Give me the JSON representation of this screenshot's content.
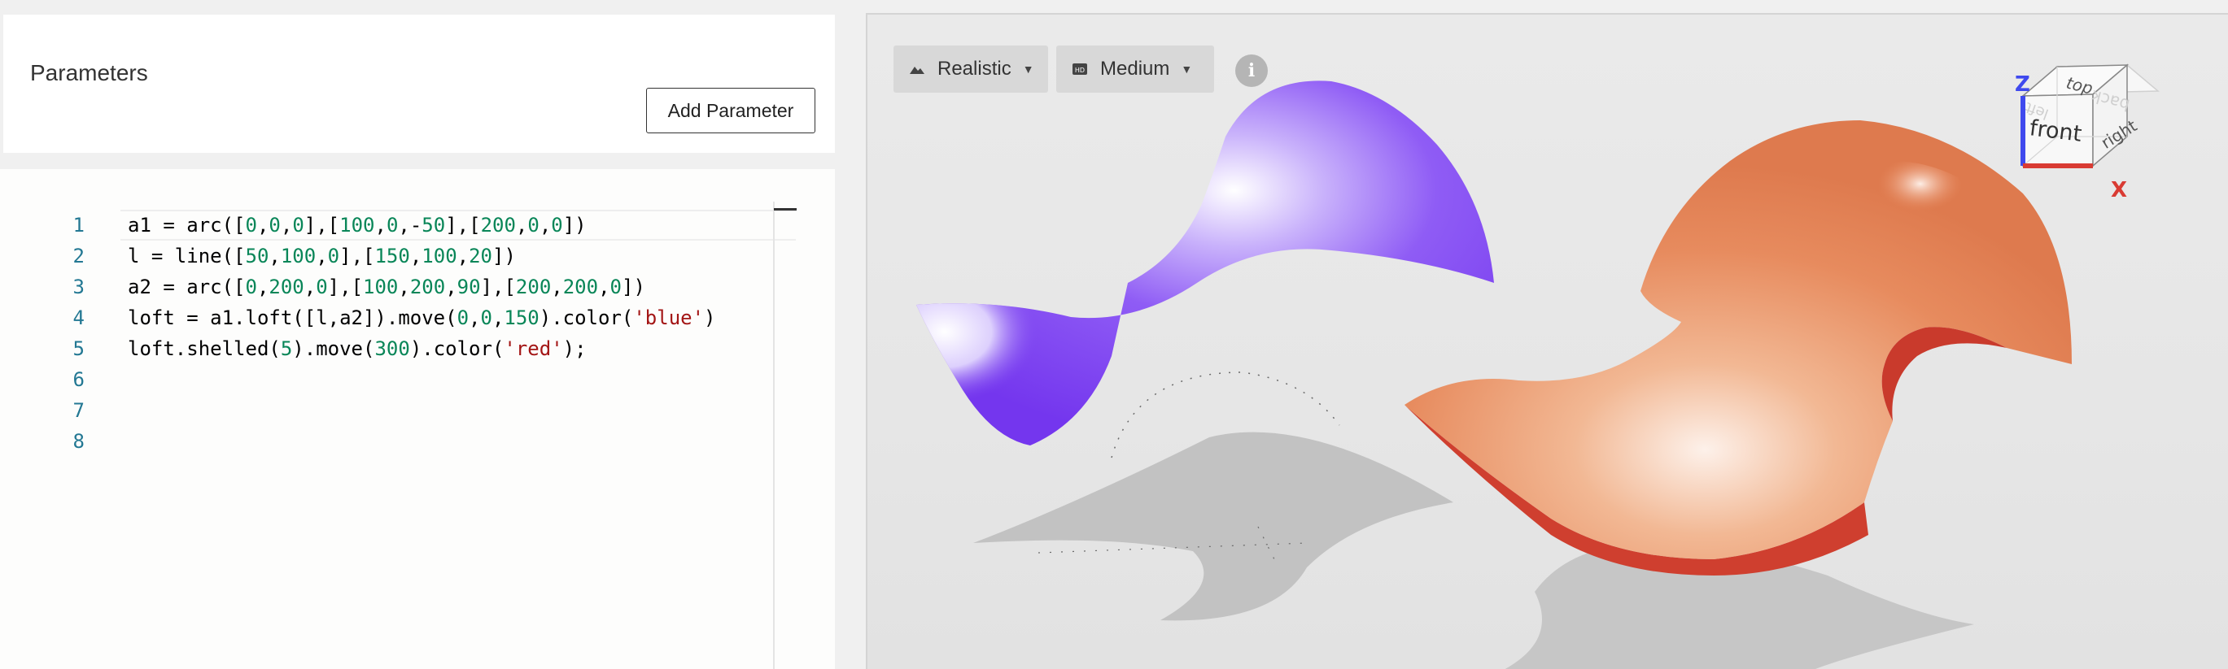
{
  "parameters": {
    "title": "Parameters",
    "add_button_label": "Add Parameter"
  },
  "editor": {
    "line_numbers": [
      "1",
      "2",
      "3",
      "4",
      "5",
      "6",
      "7",
      "8"
    ]
  },
  "viewport": {
    "render_mode_label": "Realistic",
    "quality_label": "Medium",
    "info_label": "i",
    "view_cube": {
      "front": "front",
      "top": "top",
      "right": "right",
      "back": "back",
      "left": "left",
      "axis_z": "Z",
      "axis_x": "X"
    }
  },
  "colors": {
    "blue_surface": "#7b3ff2",
    "red_surface": "#e88a5e",
    "axis_z": "#4455ee",
    "axis_x": "#d9443a"
  }
}
